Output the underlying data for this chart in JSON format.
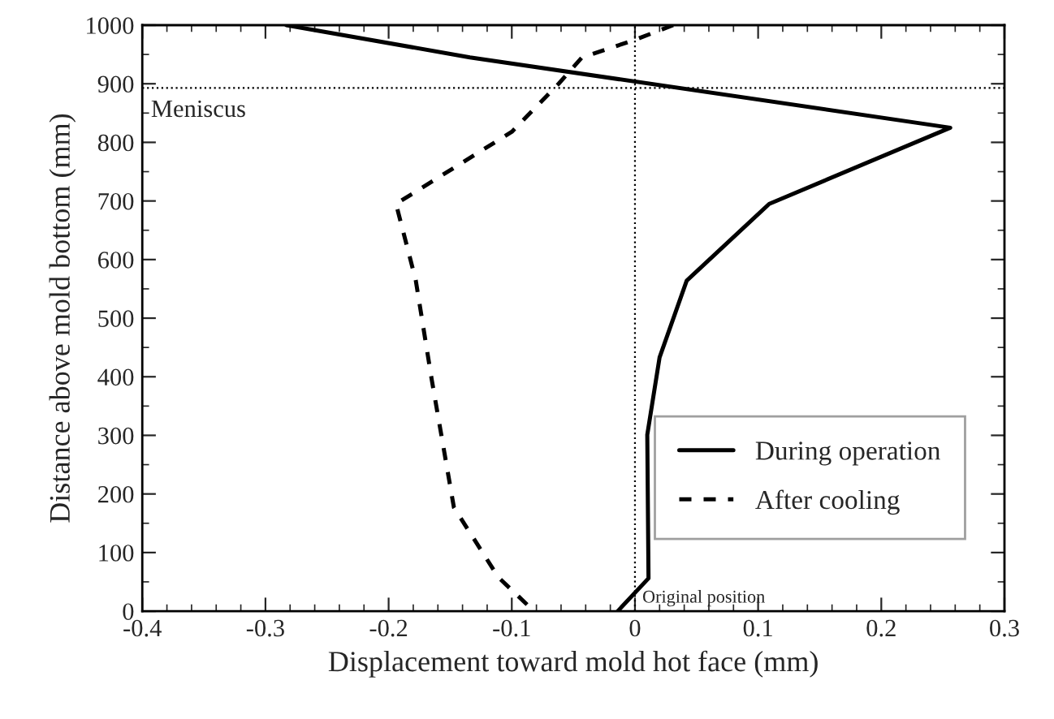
{
  "chart_data": {
    "type": "line",
    "xlabel": "Displacement toward mold hot face (mm)",
    "ylabel": "Distance above mold bottom (mm)",
    "series": [
      {
        "name": "During operation",
        "color": "#000000",
        "line_style": "solid",
        "x": [
          -0.283,
          -0.134,
          0.256,
          0.109,
          0.042,
          0.02,
          0.01,
          0.011,
          -0.014
        ],
        "values": [
          1000,
          945,
          825,
          695,
          564,
          433,
          301,
          56,
          0
        ]
      },
      {
        "name": "After cooling",
        "color": "#000000",
        "line_style": "dashed",
        "x": [
          0.031,
          0.0,
          -0.043,
          -0.062,
          -0.1,
          -0.194,
          -0.178,
          -0.165,
          -0.147,
          -0.111,
          -0.082
        ],
        "values": [
          1000,
          975,
          945,
          900,
          818,
          695,
          565,
          395,
          177,
          58,
          0
        ]
      }
    ],
    "xlim": [
      -0.4,
      0.3
    ],
    "xticks": [
      -0.4,
      -0.3,
      -0.2,
      -0.1,
      0,
      0.1,
      0.2,
      0.3
    ],
    "ylim": [
      0,
      1000
    ],
    "yticks": [
      0,
      100,
      200,
      300,
      400,
      500,
      600,
      700,
      800,
      900,
      1000
    ],
    "ref_lines": [
      {
        "axis": "y",
        "value": 893,
        "label": "Meniscus",
        "line_style": "dotted",
        "color": "#000000"
      },
      {
        "axis": "x",
        "value": 0,
        "label": "Original position",
        "line_style": "dotted",
        "color": "#000000"
      }
    ],
    "grid": false,
    "legend": "bottom right",
    "marker": "none"
  }
}
